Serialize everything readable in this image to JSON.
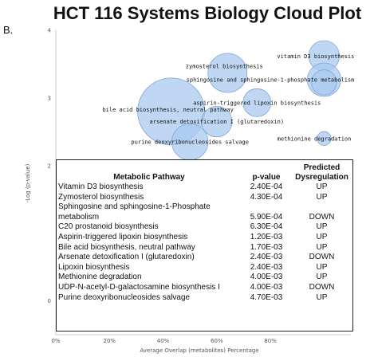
{
  "chart_data": {
    "type": "scatter",
    "title": "HCT 116 Systems Biology Cloud Plot",
    "panel_label": "B.",
    "xlabel": "Average Overlap (metabolites) Percentage",
    "ylabel": "-Log (p-value)",
    "xlim": [
      0,
      110
    ],
    "ylim": [
      -0.5,
      4
    ],
    "xticks": [
      0,
      20,
      40,
      60,
      80
    ],
    "xtick_labels": [
      "0%",
      "20%",
      "40%",
      "60%",
      "80%"
    ],
    "yticks": [
      0,
      2,
      3,
      4
    ],
    "ytick_labels": [
      "0",
      "2",
      "3",
      "4"
    ],
    "bubble_color": "#a9c9ef",
    "bubble_stroke": "#7fa6d6",
    "points": [
      {
        "label": "vitamin D3 biosynthesis",
        "x": 100,
        "y": 3.62,
        "size": 11
      },
      {
        "label": "zymosterol biosynthesis",
        "x": 64,
        "y": 3.37,
        "size": 14
      },
      {
        "label": "sphingosine and sphingosine-1-phosphate metabolism",
        "x": 100,
        "y": 3.27,
        "size": 12
      },
      {
        "label": "C20 prostanoid biosynthesis",
        "x": 100,
        "y": 3.23,
        "size": 9
      },
      {
        "label": "aspirin-triggered lipoxin biosynthesis",
        "x": 75,
        "y": 2.93,
        "size": 10
      },
      {
        "label": "bile acid biosynthesis, neutral pathway",
        "x": 43,
        "y": 2.8,
        "size": 24
      },
      {
        "label": "arsenate detoxification I (glutaredoxin)",
        "x": 60,
        "y": 2.65,
        "size": 11
      },
      {
        "label": "purine deoxyribonucleosides salvage",
        "x": 50,
        "y": 2.35,
        "size": 13
      },
      {
        "label": "methionine degradation",
        "x": 100,
        "y": 2.4,
        "size": 5
      }
    ]
  },
  "table": {
    "headers": {
      "pathway": "Metabolic Pathway",
      "pvalue": "p-value",
      "dysreg_line1": "Predicted",
      "dysreg_line2": "Dysregulation"
    },
    "rows": [
      {
        "pathway": "Vitamin D3 biosynthesis",
        "pvalue": "2.40E-04",
        "dysreg": "UP"
      },
      {
        "pathway": "Zymosterol biosynthesis",
        "pvalue": "4.30E-04",
        "dysreg": "UP"
      },
      {
        "pathway": "Sphingosine and sphingosine-1-Phosphate",
        "pathway2": "metabolism",
        "pvalue": "5.90E-04",
        "dysreg": "DOWN"
      },
      {
        "pathway": "C20 prostanoid biosynthesis",
        "pvalue": "6.30E-04",
        "dysreg": "UP"
      },
      {
        "pathway": "Aspirin-triggered lipoxin biosynthesis",
        "pvalue": "1.20E-03",
        "dysreg": "UP"
      },
      {
        "pathway": "Bile acid biosynthesis, neutral pathway",
        "pvalue": "1.70E-03",
        "dysreg": "UP"
      },
      {
        "pathway": "Arsenate detoxification I (glutaredoxin)",
        "pvalue": "2.40E-03",
        "dysreg": "DOWN"
      },
      {
        "pathway": "Lipoxin biosynthesis",
        "pvalue": "2.40E-03",
        "dysreg": "UP"
      },
      {
        "pathway": "Methionine degradation",
        "pvalue": "4.00E-03",
        "dysreg": "UP"
      },
      {
        "pathway": "UDP-N-acetyl-D-galactosamine biosynthesis I",
        "pvalue": "4.00E-03",
        "dysreg": "DOWN"
      },
      {
        "pathway": "Purine deoxyribonucleosides salvage",
        "pvalue": "4.70E-03",
        "dysreg": "UP"
      }
    ]
  }
}
